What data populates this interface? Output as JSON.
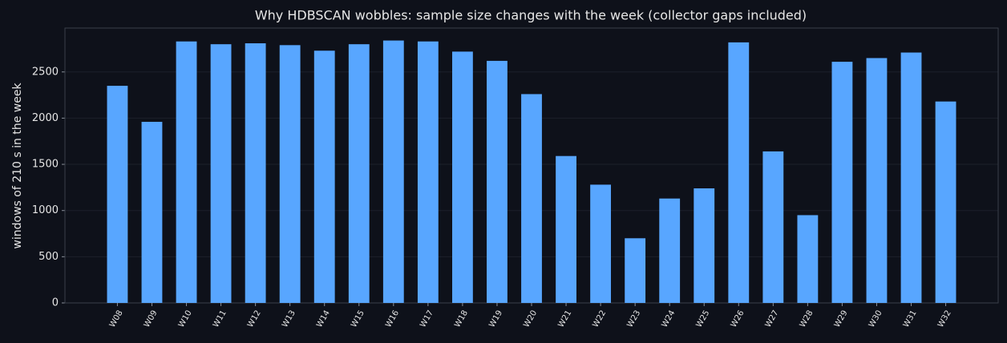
{
  "chart_data": {
    "type": "bar",
    "title": "Why HDBSCAN wobbles: sample size changes with the week (collector gaps included)",
    "y_label": "windows of 210 s in the week",
    "categories": [
      "W08",
      "W09",
      "W10",
      "W11",
      "W12",
      "W13",
      "W14",
      "W15",
      "W16",
      "W17",
      "W18",
      "W19",
      "W20",
      "W21",
      "W22",
      "W23",
      "W24",
      "W25",
      "W26",
      "W27",
      "W28",
      "W29",
      "W30",
      "W31",
      "W32"
    ],
    "values": [
      2350,
      1960,
      2830,
      2800,
      2810,
      2790,
      2730,
      2800,
      2840,
      2830,
      2720,
      2620,
      2260,
      1590,
      1280,
      700,
      1130,
      1240,
      2820,
      1640,
      950,
      2610,
      2650,
      2710,
      2180
    ],
    "color": "#58a6ff",
    "ylim": [
      0,
      2975
    ],
    "yticks": [
      0,
      500,
      1000,
      1500,
      2000,
      2500
    ],
    "grid": true
  }
}
